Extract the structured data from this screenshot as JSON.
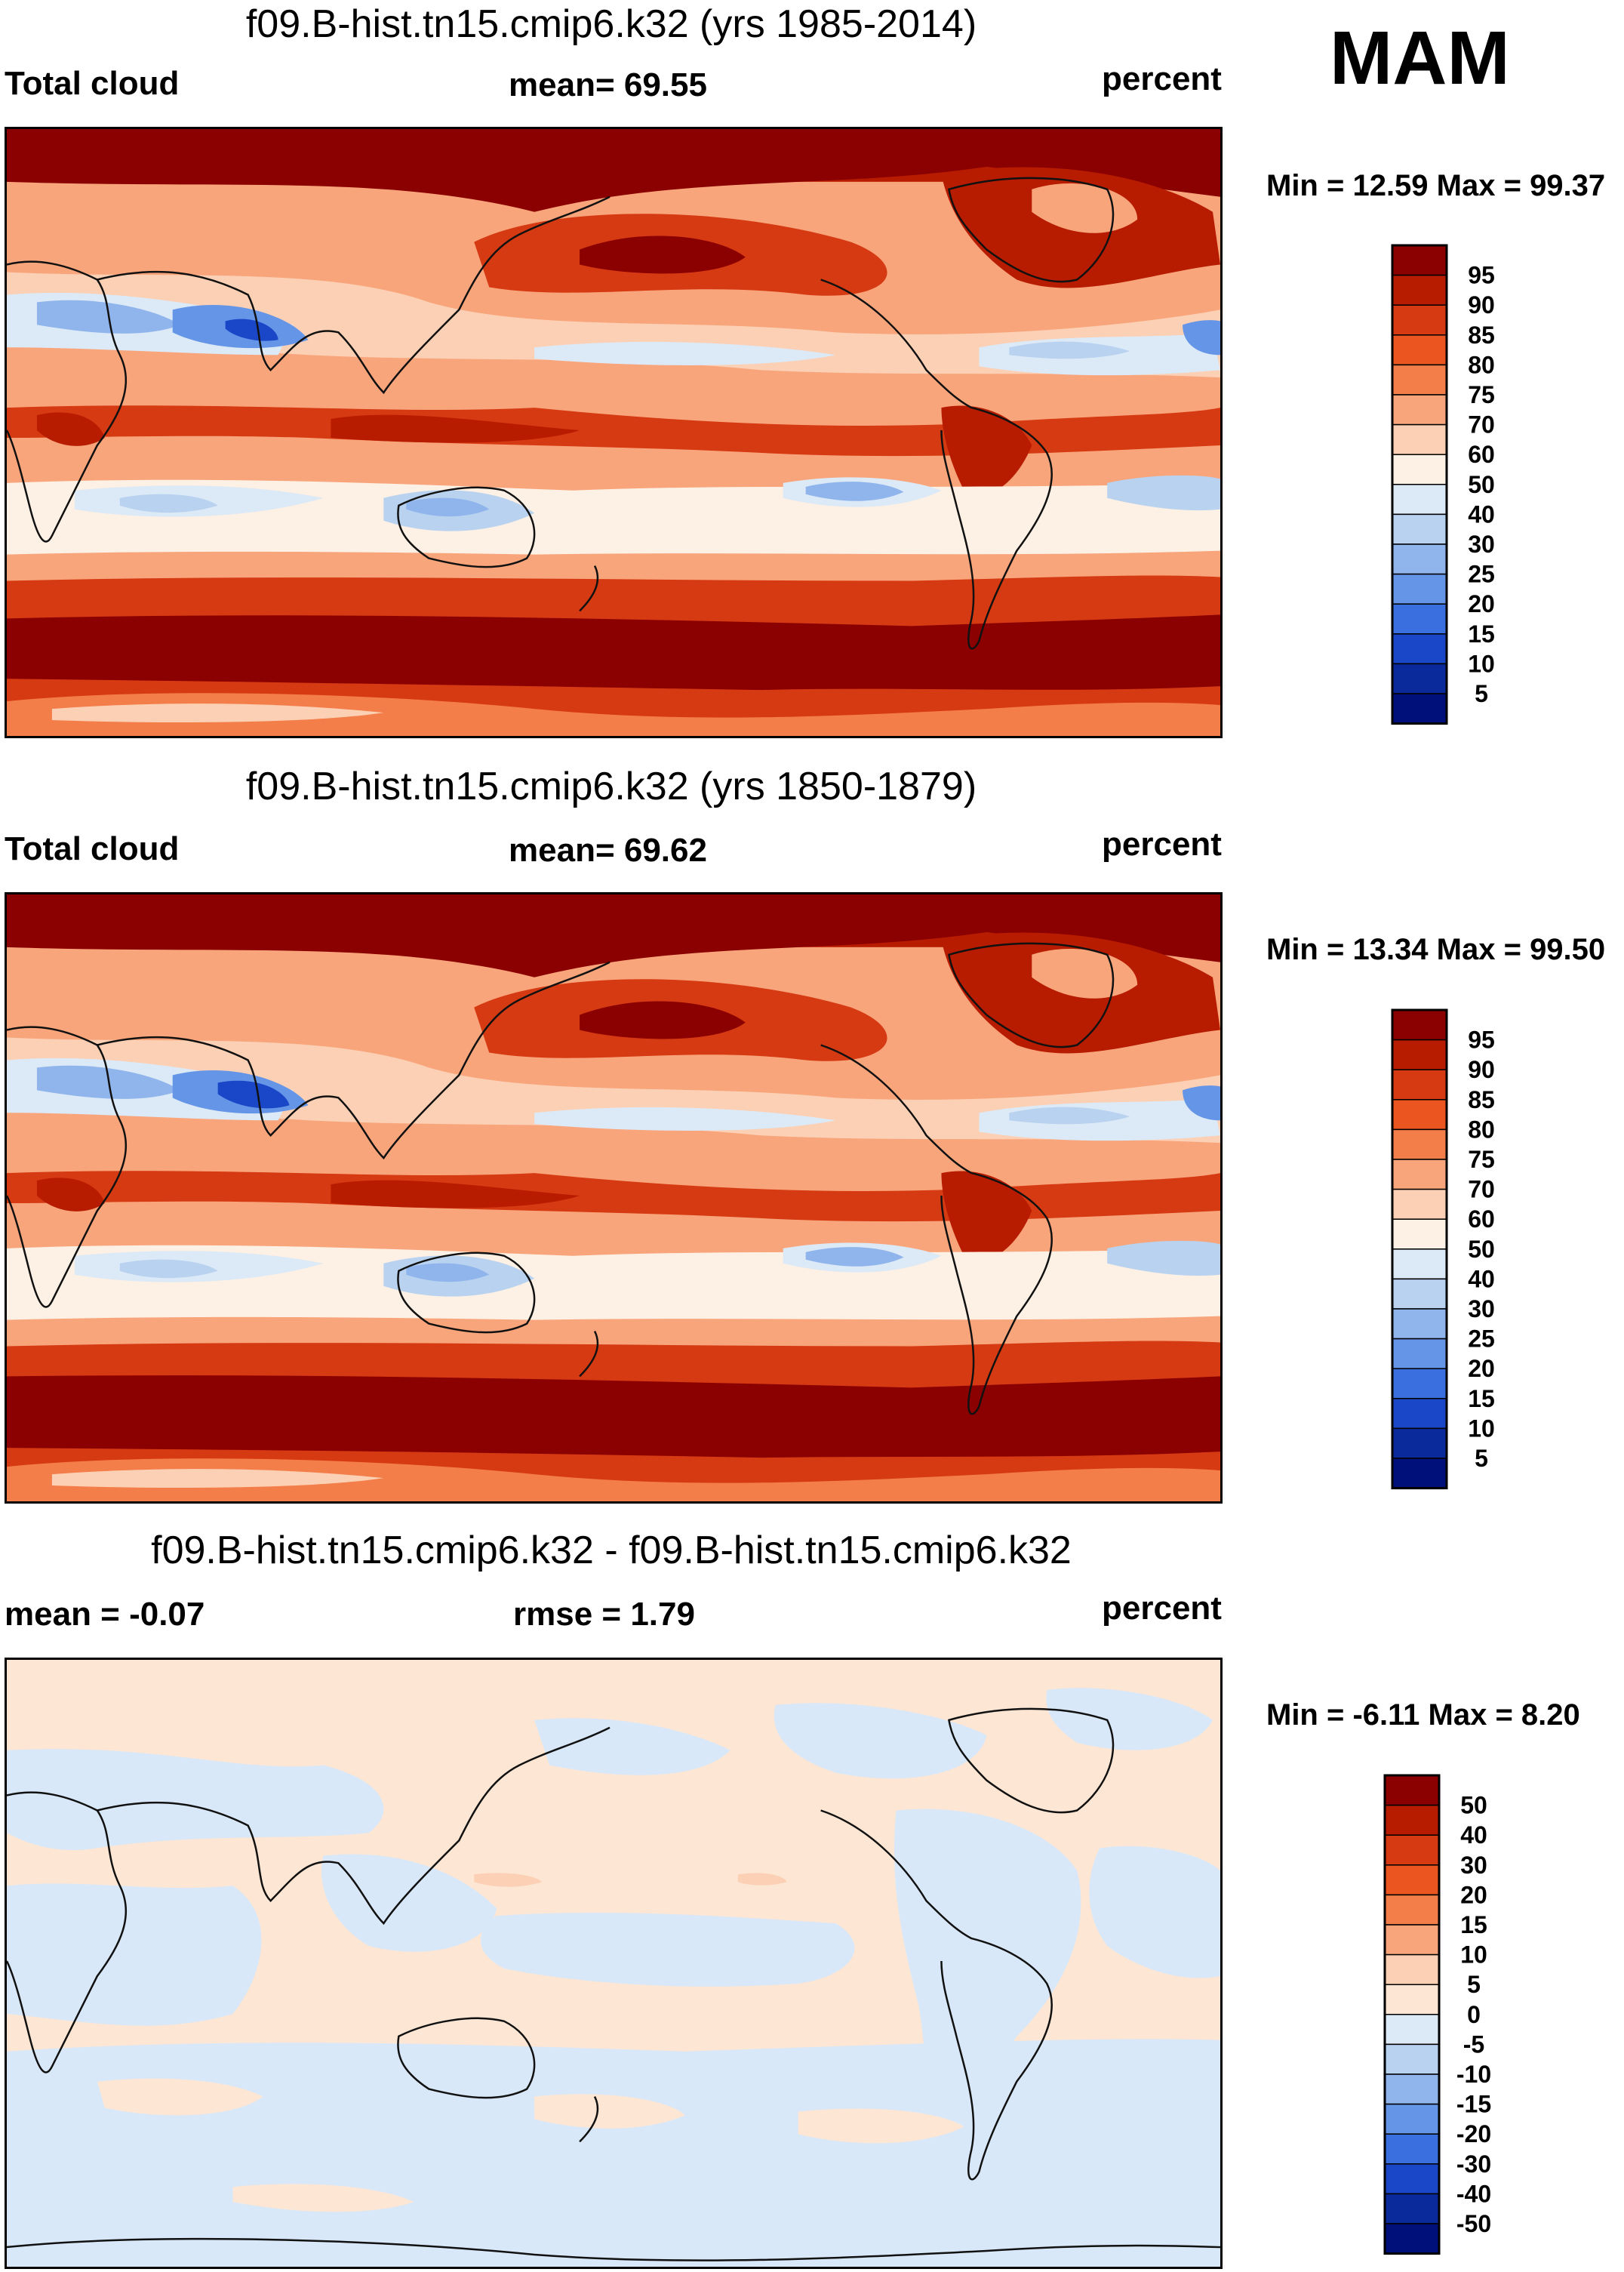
{
  "season": "MAM",
  "panels": [
    {
      "id": "p1",
      "title": "f09.B-hist.tn15.cmip6.k32 (yrs 1985-2014)",
      "left_label": "Total cloud",
      "mid_label": "mean=  69.55",
      "units": "percent",
      "minmax": "Min =  12.59 Max =  99.37",
      "colorbar_labels": [
        "95",
        "90",
        "85",
        "80",
        "75",
        "70",
        "60",
        "50",
        "40",
        "30",
        "25",
        "20",
        "15",
        "10",
        "5"
      ]
    },
    {
      "id": "p2",
      "title": "f09.B-hist.tn15.cmip6.k32 (yrs 1850-1879)",
      "left_label": "Total cloud",
      "mid_label": "mean=  69.62",
      "units": "percent",
      "minmax": "Min =  13.34 Max =  99.50",
      "colorbar_labels": [
        "95",
        "90",
        "85",
        "80",
        "75",
        "70",
        "60",
        "50",
        "40",
        "30",
        "25",
        "20",
        "15",
        "10",
        "5"
      ]
    },
    {
      "id": "p3",
      "title": "f09.B-hist.tn15.cmip6.k32 - f09.B-hist.tn15.cmip6.k32",
      "left_label": "mean =  -0.07",
      "mid_label": "rmse =   1.79",
      "units": "percent",
      "minmax": "Min =  -6.11 Max =   8.20",
      "colorbar_labels": [
        "50",
        "40",
        "30",
        "20",
        "15",
        "10",
        "5",
        "0",
        "-5",
        "-10",
        "-15",
        "-20",
        "-30",
        "-40",
        "-50"
      ]
    }
  ],
  "colors": {
    "abs_scale": [
      "#8b0000",
      "#b71c00",
      "#d63a12",
      "#ea5520",
      "#f37e4a",
      "#f9a57c",
      "#fcd0b4",
      "#fdf0e4",
      "#dce9f7",
      "#b8d2f0",
      "#90b5ec",
      "#6595e6",
      "#3a6fe0",
      "#1a47c8",
      "#0a2a9c",
      "#00107a"
    ],
    "diff_scale": [
      "#8b0000",
      "#b71c00",
      "#d63a12",
      "#ea5520",
      "#f37e4a",
      "#f9a57c",
      "#fcd0b4",
      "#fde6d4",
      "#dce9f7",
      "#b8d2f0",
      "#90b5ec",
      "#6595e6",
      "#3a6fe0",
      "#1a47c8",
      "#0a2a9c",
      "#00107a"
    ],
    "diff_pos": "#fde6d4",
    "diff_neg": "#d9e8f8",
    "coast": "#111111"
  }
}
